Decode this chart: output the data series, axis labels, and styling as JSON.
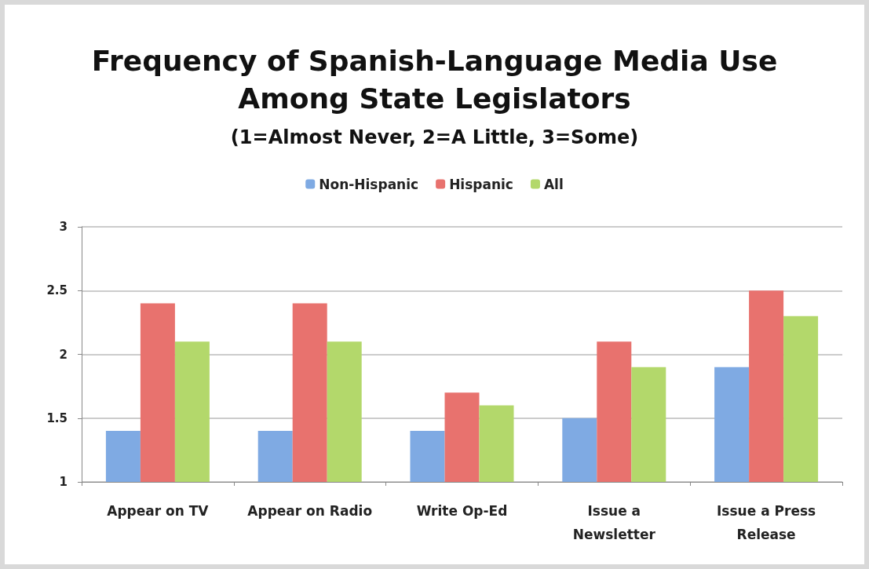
{
  "chart_data": {
    "type": "bar",
    "title": "Frequency of Spanish-Language Media Use\nAmong State Legislators",
    "subtitle": "(1=Almost Never, 2=A Little, 3=Some)",
    "categories": [
      "Appear on TV",
      "Appear on Radio",
      "Write Op-Ed",
      "Issue a\nNewsletter",
      "Issue a Press\nRelease"
    ],
    "series": [
      {
        "name": "Non-Hispanic",
        "color": "#7faae3",
        "values": [
          1.4,
          1.4,
          1.4,
          1.5,
          1.9
        ]
      },
      {
        "name": "Hispanic",
        "color": "#e8726e",
        "values": [
          2.4,
          2.4,
          1.7,
          2.1,
          2.5
        ]
      },
      {
        "name": "All",
        "color": "#b3d86b",
        "values": [
          2.1,
          2.1,
          1.6,
          1.9,
          2.3
        ]
      }
    ],
    "ylim": [
      1,
      3
    ],
    "yticks": [
      1,
      1.5,
      2,
      2.5,
      3
    ],
    "grid": "y",
    "legend": "top"
  }
}
